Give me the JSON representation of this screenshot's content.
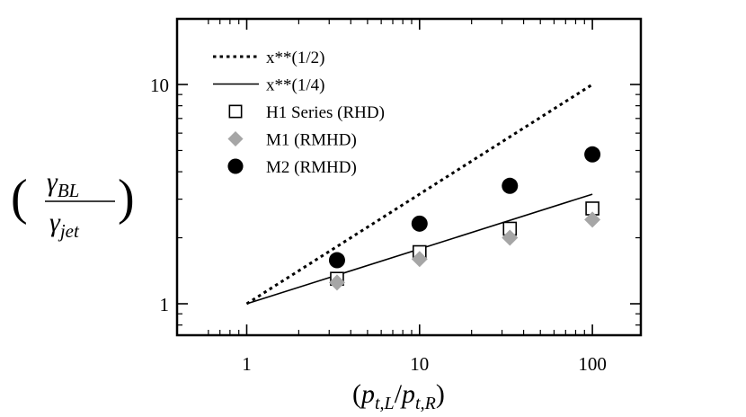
{
  "chart_data": {
    "type": "scatter",
    "scale": "log-log",
    "xlim": [
      0.5,
      200
    ],
    "ylim": [
      0.7,
      20
    ],
    "x_ticks": [
      {
        "value": 1,
        "label": "1"
      },
      {
        "value": 10,
        "label": "10"
      },
      {
        "value": 100,
        "label": "100"
      }
    ],
    "y_ticks": [
      {
        "value": 1,
        "label": "1"
      },
      {
        "value": 10,
        "label": "10"
      }
    ],
    "xlabel": {
      "open": "(",
      "base": "p",
      "sub1": "t,L",
      "slash": "/",
      "sub2": "t,R",
      "close": ")"
    },
    "ylabel": {
      "num_base": "γ",
      "num_sub": "BL",
      "den_base": "γ",
      "den_sub": "jet"
    },
    "legend_position": "top-left",
    "series": [
      {
        "name": "x**(1/2)",
        "kind": "dotted-line",
        "x": [
          1,
          100
        ],
        "y": [
          1,
          10
        ],
        "color": "#000000"
      },
      {
        "name": "x**(1/4)",
        "kind": "solid-line",
        "x": [
          1,
          100
        ],
        "y": [
          1,
          3.16
        ],
        "color": "#000000"
      },
      {
        "name": "H1 Series (RHD)",
        "kind": "open-square",
        "x": [
          3.33,
          10,
          33.3,
          100
        ],
        "y": [
          1.3,
          1.72,
          2.2,
          2.72
        ],
        "color": "#000000"
      },
      {
        "name": "M1 (RMHD)",
        "kind": "diamond",
        "x": [
          3.33,
          10,
          33.3,
          100
        ],
        "y": [
          1.25,
          1.6,
          2.0,
          2.42
        ],
        "color": "#a6a6a6"
      },
      {
        "name": "M2 (RMHD)",
        "kind": "filled-circle",
        "x": [
          3.33,
          10,
          33.3,
          100
        ],
        "y": [
          1.58,
          2.32,
          3.45,
          4.8
        ],
        "color": "#000000"
      }
    ]
  }
}
